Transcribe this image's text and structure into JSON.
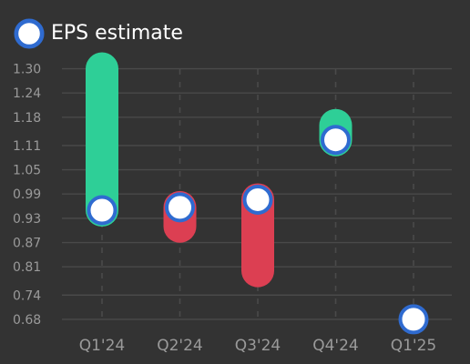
{
  "legend": {
    "label": "EPS estimate",
    "marker_fill": "#ffffff",
    "marker_stroke": "#2f6bd0"
  },
  "colors": {
    "background": "#333333",
    "beat": "#2ecf97",
    "miss": "#dc3f52",
    "grid": "#4a4a4a",
    "tick_label": "#9a9a9a",
    "estimate_fill": "#ffffff",
    "estimate_stroke": "#2f6bd0"
  },
  "chart_data": {
    "type": "bar",
    "categories": [
      "Q1'24",
      "Q2'24",
      "Q3'24",
      "Q4'24",
      "Q1'25"
    ],
    "yticks": [
      0.68,
      0.74,
      0.81,
      0.87,
      0.93,
      0.99,
      1.05,
      1.11,
      1.18,
      1.24,
      1.3
    ],
    "ylim": [
      0.655,
      1.335
    ],
    "grid": true,
    "legend_position": "top-left",
    "series": [
      {
        "name": "EPS estimate",
        "values": [
          0.95,
          0.957,
          0.976,
          1.124,
          0.68
        ]
      },
      {
        "values": [
          1.3,
          0.91,
          0.8,
          1.16,
          null
        ]
      }
    ]
  }
}
